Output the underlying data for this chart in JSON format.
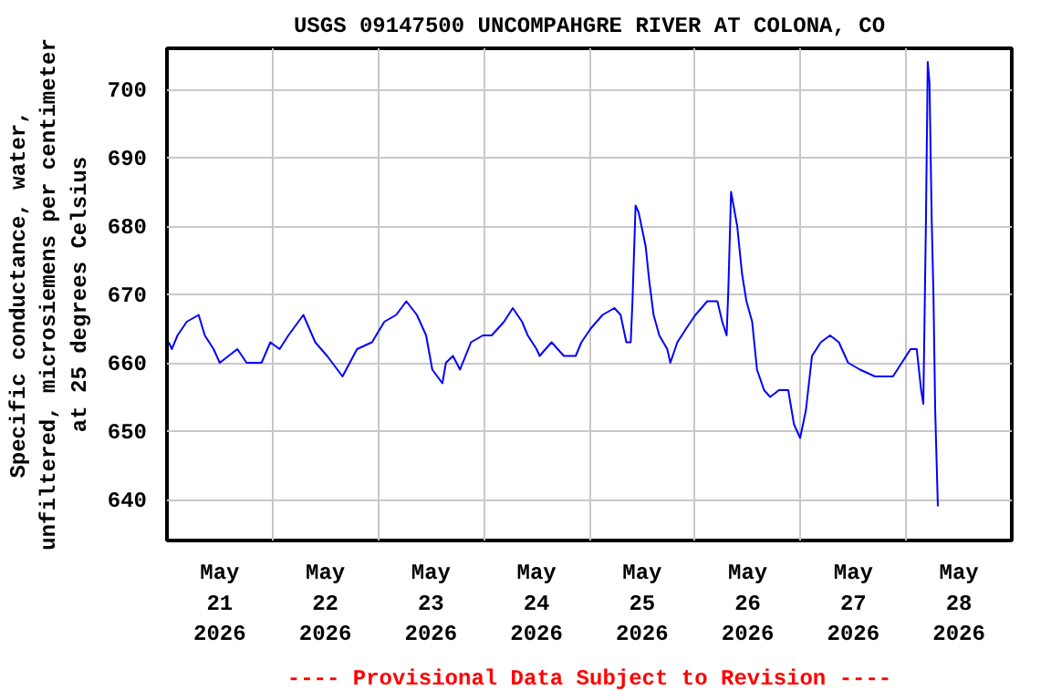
{
  "chart_data": {
    "type": "line",
    "title": "USGS 09147500 UNCOMPAHGRE RIVER AT COLONA, CO",
    "ylabel": "Specific conductance, water,\nunfiltered, microsiemens per centimeter\nat 25 degrees Celsius",
    "annotations": [
      "---- Provisional Data Subject to Revision ----"
    ],
    "x": [
      "2026-05-21T00:24",
      "2026-05-21T01:06",
      "2026-05-21T02:24",
      "2026-05-21T04:30",
      "2026-05-21T07:12",
      "2026-05-21T08:36",
      "2026-05-21T10:36",
      "2026-05-21T12:00",
      "2026-05-21T16:00",
      "2026-05-21T18:06",
      "2026-05-21T21:30",
      "2026-05-21T23:30",
      "2026-05-22T01:36",
      "2026-05-22T03:36",
      "2026-05-22T07:00",
      "2026-05-22T09:42",
      "2026-05-22T12:24",
      "2026-05-22T15:54",
      "2026-05-22T19:12",
      "2026-05-22T22:36",
      "2026-05-23T01:24",
      "2026-05-23T04:06",
      "2026-05-23T06:24",
      "2026-05-23T08:48",
      "2026-05-23T10:54",
      "2026-05-23T12:18",
      "2026-05-23T14:36",
      "2026-05-23T15:24",
      "2026-05-23T17:00",
      "2026-05-23T18:36",
      "2026-05-23T21:06",
      "2026-05-23T23:48",
      "2026-05-24T01:48",
      "2026-05-24T04:36",
      "2026-05-24T06:36",
      "2026-05-24T08:42",
      "2026-05-24T10:00",
      "2026-05-24T12:00",
      "2026-05-24T12:42",
      "2026-05-24T15:24",
      "2026-05-24T18:12",
      "2026-05-24T20:54",
      "2026-05-24T22:12",
      "2026-05-25T00:18",
      "2026-05-25T03:00",
      "2026-05-25T05:42",
      "2026-05-25T07:06",
      "2026-05-25T08:24",
      "2026-05-25T09:24",
      "2026-05-25T09:48",
      "2026-05-25T10:30",
      "2026-05-25T11:12",
      "2026-05-25T12:48",
      "2026-05-25T13:36",
      "2026-05-25T14:36",
      "2026-05-25T15:54",
      "2026-05-25T17:42",
      "2026-05-25T18:24",
      "2026-05-25T20:00",
      "2026-05-25T22:00",
      "2026-05-26T00:06",
      "2026-05-26T02:48",
      "2026-05-26T05:06",
      "2026-05-26T06:12",
      "2026-05-26T07:12",
      "2026-05-26T07:36",
      "2026-05-26T08:12",
      "2026-05-26T09:36",
      "2026-05-26T10:42",
      "2026-05-26T11:42",
      "2026-05-26T13:00",
      "2026-05-26T14:06",
      "2026-05-26T15:42",
      "2026-05-26T17:06",
      "2026-05-26T19:06",
      "2026-05-26T21:12",
      "2026-05-26T22:30",
      "2026-05-26T23:54",
      "2026-05-27T01:12",
      "2026-05-27T02:36",
      "2026-05-27T04:36",
      "2026-05-27T06:42",
      "2026-05-27T08:42",
      "2026-05-27T10:48",
      "2026-05-27T13:30",
      "2026-05-27T16:54",
      "2026-05-27T21:00",
      "2026-05-27T23:00",
      "2026-05-28T01:00",
      "2026-05-28T02:24",
      "2026-05-28T03:24",
      "2026-05-28T03:54",
      "2026-05-28T04:30",
      "2026-05-28T04:54",
      "2026-05-28T05:18",
      "2026-05-28T05:48",
      "2026-05-28T06:12",
      "2026-05-28T06:36",
      "2026-05-28T07:12"
    ],
    "series": [
      {
        "color": "#0000ff",
        "values": [
          663,
          662,
          664,
          666,
          667,
          664,
          662,
          660,
          662,
          660,
          660,
          663,
          662,
          664,
          667,
          663,
          661,
          658,
          662,
          663,
          666,
          667,
          669,
          667,
          664,
          659,
          657,
          660,
          661,
          659,
          663,
          664,
          664,
          666,
          668,
          666,
          664,
          662,
          661,
          663,
          661,
          661,
          663,
          665,
          667,
          668,
          667,
          663,
          663,
          669,
          683,
          682,
          677,
          672,
          667,
          664,
          662,
          660,
          663,
          665,
          667,
          669,
          669,
          666,
          664,
          671,
          685,
          680,
          673,
          669,
          666,
          659,
          656,
          655,
          656,
          656,
          651,
          649,
          653,
          661,
          663,
          664,
          663,
          660,
          659,
          658,
          658,
          660,
          662,
          662,
          656,
          654,
          681,
          704,
          701,
          681,
          670,
          653,
          639
        ]
      }
    ],
    "xlim": [
      "2026-05-21",
      "2026-05-29"
    ],
    "xticks": [
      {
        "value": "2026-05-21",
        "label": null
      },
      {
        "value": "2026-05-21T12:00",
        "label": "May\n21\n2026"
      },
      {
        "value": "2026-05-22",
        "label": null
      },
      {
        "value": "2026-05-22T12:00",
        "label": "May\n22\n2026"
      },
      {
        "value": "2026-05-23",
        "label": null
      },
      {
        "value": "2026-05-23T12:00",
        "label": "May\n23\n2026"
      },
      {
        "value": "2026-05-24",
        "label": null
      },
      {
        "value": "2026-05-24T12:00",
        "label": "May\n24\n2026"
      },
      {
        "value": "2026-05-25",
        "label": null
      },
      {
        "value": "2026-05-25T12:00",
        "label": "May\n25\n2026"
      },
      {
        "value": "2026-05-26",
        "label": null
      },
      {
        "value": "2026-05-26T12:00",
        "label": "May\n26\n2026"
      },
      {
        "value": "2026-05-27",
        "label": null
      },
      {
        "value": "2026-05-27T12:00",
        "label": "May\n27\n2026"
      },
      {
        "value": "2026-05-28",
        "label": null
      },
      {
        "value": "2026-05-28T12:00",
        "label": "May\n28\n2026"
      },
      {
        "value": "2026-05-29",
        "label": null
      }
    ],
    "ylim": [
      634,
      706
    ],
    "yticks": [
      640,
      650,
      660,
      670,
      680,
      690,
      700
    ],
    "grid": true,
    "marker": "none",
    "line_style": "solid"
  }
}
